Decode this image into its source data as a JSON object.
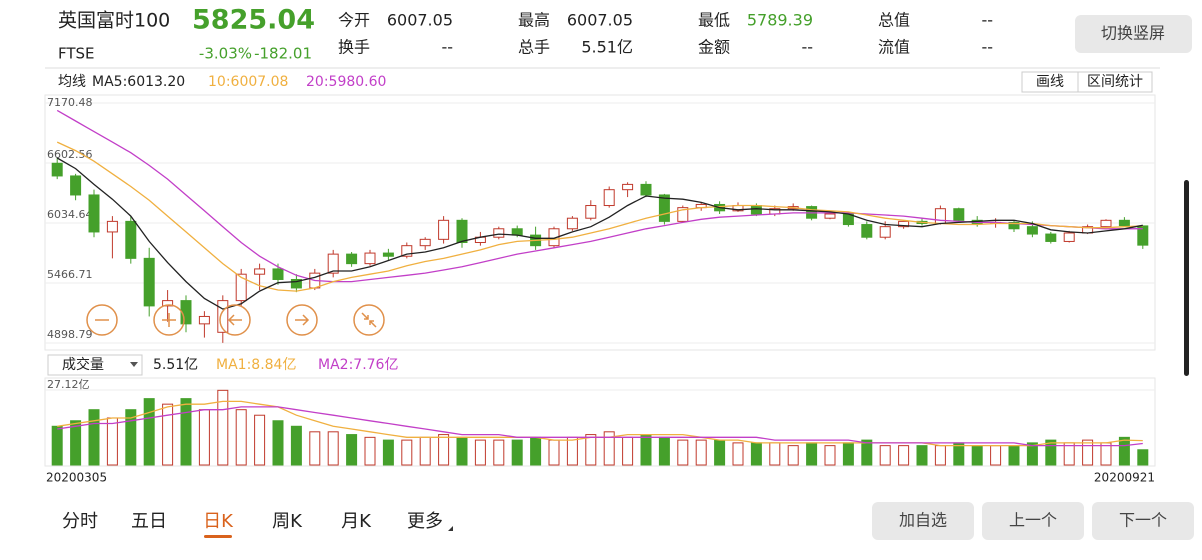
{
  "header": {
    "name": "英国富时100",
    "price": "5825.04",
    "code": "FTSE",
    "change_pct": "-3.03%",
    "change": "-182.01",
    "stats": [
      {
        "label": "今开",
        "value": "6007.05"
      },
      {
        "label": "最高",
        "value": "6007.05"
      },
      {
        "label": "最低",
        "value": "5789.39"
      },
      {
        "label": "总值",
        "value": "--"
      },
      {
        "label": "换手",
        "value": "--"
      },
      {
        "label": "总手",
        "value": "5.51亿"
      },
      {
        "label": "金额",
        "value": "--"
      },
      {
        "label": "流值",
        "value": "--"
      }
    ],
    "toggle": "切换竖屏"
  },
  "chart_data": {
    "type": "candlestick",
    "ma_legend": {
      "label": "均线",
      "ma5": "MA5:6013.20",
      "ma10": "10:6007.08",
      "ma20": "20:5980.60"
    },
    "tools": [
      "画线",
      "区间统计"
    ],
    "up_color": "#c0392b",
    "down_color": "#45a02b",
    "ma5_color": "#222222",
    "ma10_color": "#f0b040",
    "ma20_color": "#c23fc8",
    "ylim": [
      4898.79,
      7170.48
    ],
    "yticks": [
      7170.48,
      6602.56,
      6034.64,
      5466.71,
      4898.79
    ],
    "grid": true,
    "open": [
      6600,
      6480,
      6300,
      5950,
      6050,
      5700,
      5250,
      5300,
      5080,
      5000,
      5300,
      5550,
      5600,
      5500,
      5420,
      5560,
      5740,
      5650,
      5750,
      5720,
      5820,
      5880,
      6060,
      5850,
      5900,
      5980,
      5920,
      5820,
      5980,
      6080,
      6200,
      6350,
      6400,
      6300,
      6050,
      6180,
      6210,
      6150,
      6200,
      6120,
      6170,
      6190,
      6080,
      6120,
      6020,
      5900,
      6000,
      6050,
      6030,
      6170,
      6060,
      6030,
      6040,
      6000,
      5930,
      5860,
      5940,
      6000,
      6060,
      6007.05
    ],
    "high": [
      6650,
      6500,
      6350,
      6100,
      6100,
      5800,
      5400,
      5350,
      5200,
      5350,
      5600,
      5650,
      5650,
      5550,
      5600,
      5780,
      5760,
      5780,
      5790,
      5850,
      5900,
      6100,
      6080,
      5950,
      6000,
      6010,
      6000,
      6000,
      6100,
      6250,
      6380,
      6420,
      6430,
      6310,
      6200,
      6230,
      6240,
      6230,
      6220,
      6200,
      6220,
      6200,
      6150,
      6130,
      6050,
      6050,
      6060,
      6080,
      6200,
      6180,
      6100,
      6080,
      6060,
      6050,
      5950,
      5960,
      6020,
      6070,
      6090,
      6007.05
    ],
    "low": [
      6450,
      6250,
      5900,
      5700,
      5650,
      5150,
      5100,
      5000,
      4950,
      4900,
      5250,
      5400,
      5450,
      5380,
      5400,
      5520,
      5620,
      5630,
      5680,
      5700,
      5780,
      5840,
      5800,
      5820,
      5880,
      5900,
      5780,
      5800,
      5960,
      6060,
      6180,
      6280,
      6280,
      6020,
      6040,
      6150,
      6120,
      6140,
      6100,
      6100,
      6150,
      6060,
      6070,
      6000,
      5880,
      5880,
      5980,
      6010,
      6020,
      6040,
      6000,
      5990,
      5950,
      5900,
      5840,
      5850,
      5930,
      5990,
      6000,
      5789.39
    ],
    "close": [
      6480,
      6300,
      5950,
      6050,
      5700,
      5250,
      5300,
      5080,
      5150,
      5300,
      5550,
      5600,
      5500,
      5420,
      5560,
      5740,
      5650,
      5750,
      5720,
      5820,
      5880,
      6060,
      5850,
      5900,
      5980,
      5920,
      5820,
      5980,
      6080,
      6200,
      6350,
      6400,
      6300,
      6050,
      6180,
      6210,
      6150,
      6200,
      6120,
      6170,
      6190,
      6080,
      6120,
      6020,
      5900,
      6000,
      6050,
      6030,
      6170,
      6060,
      6030,
      6040,
      5980,
      5930,
      5860,
      5940,
      6000,
      6060,
      6010,
      5825.04
    ],
    "ma5": [
      6650,
      6550,
      6400,
      6260,
      6100,
      5860,
      5660,
      5480,
      5320,
      5220,
      5270,
      5390,
      5470,
      5480,
      5520,
      5580,
      5580,
      5620,
      5680,
      5740,
      5760,
      5800,
      5860,
      5900,
      5930,
      5920,
      5890,
      5890,
      5950,
      6000,
      6090,
      6200,
      6290,
      6270,
      6260,
      6230,
      6180,
      6160,
      6170,
      6160,
      6160,
      6150,
      6140,
      6120,
      6060,
      6020,
      6010,
      6000,
      6030,
      6040,
      6050,
      6060,
      6060,
      6030,
      5970,
      5950,
      5940,
      5960,
      5980,
      6013.2
    ],
    "ma10": [
      6800,
      6720,
      6620,
      6500,
      6380,
      6250,
      6100,
      5950,
      5800,
      5650,
      5520,
      5440,
      5400,
      5390,
      5420,
      5480,
      5520,
      5550,
      5580,
      5630,
      5670,
      5700,
      5740,
      5780,
      5830,
      5860,
      5870,
      5880,
      5900,
      5940,
      5980,
      6030,
      6080,
      6120,
      6160,
      6180,
      6190,
      6200,
      6200,
      6190,
      6180,
      6160,
      6150,
      6140,
      6110,
      6080,
      6060,
      6040,
      6030,
      6020,
      6020,
      6030,
      6030,
      6030,
      6010,
      6000,
      5990,
      5990,
      6000,
      6007.08
    ],
    "ma20": [
      7100,
      7000,
      6900,
      6800,
      6700,
      6580,
      6450,
      6300,
      6150,
      6000,
      5850,
      5720,
      5620,
      5540,
      5490,
      5480,
      5480,
      5500,
      5520,
      5540,
      5560,
      5590,
      5620,
      5660,
      5700,
      5740,
      5770,
      5800,
      5830,
      5860,
      5900,
      5940,
      5980,
      6010,
      6040,
      6070,
      6090,
      6100,
      6110,
      6120,
      6130,
      6130,
      6130,
      6130,
      6120,
      6110,
      6100,
      6080,
      6060,
      6050,
      6040,
      6040,
      6030,
      6020,
      6010,
      6000,
      5990,
      5980,
      5980,
      5980.6
    ],
    "volume": {
      "selector": "成交量",
      "current": "5.51亿",
      "ma1": "MA1:8.84亿",
      "ma2": "MA2:7.76亿",
      "ma1_color": "#f0b040",
      "ma2_color": "#c23fc8",
      "ylim": [
        0,
        27.12
      ],
      "yticks": [
        {
          "value": 27.12,
          "label": "27.12亿"
        }
      ],
      "values": [
        14,
        16,
        20,
        17,
        20,
        24,
        22,
        24,
        20,
        27,
        20,
        18,
        16,
        14,
        12,
        12,
        11,
        10,
        9,
        9,
        10,
        11,
        10,
        9,
        9,
        9,
        10,
        9,
        10,
        11,
        12,
        10,
        11,
        10,
        9,
        9,
        9,
        8,
        8,
        8,
        7,
        8,
        7,
        8,
        9,
        7,
        7,
        7,
        7,
        8,
        7,
        7,
        7,
        8,
        9,
        8,
        9,
        8,
        10,
        5.51
      ],
      "ma1_values": [
        14,
        15,
        16,
        17,
        17,
        19,
        21,
        22,
        22,
        23,
        23,
        22,
        21,
        18,
        16,
        14,
        13,
        12,
        11,
        10,
        10,
        10,
        10,
        10,
        10,
        10,
        10,
        9,
        9,
        10,
        10,
        11,
        11,
        11,
        11,
        10,
        9,
        9,
        8,
        8,
        8,
        8,
        8,
        8,
        8,
        8,
        8,
        8,
        7,
        7,
        7,
        7,
        7,
        7,
        8,
        8,
        8,
        8,
        9,
        8.84
      ],
      "ma2_values": [
        13,
        14,
        15,
        15,
        16,
        17,
        18,
        19,
        20,
        20,
        21,
        21,
        21,
        20,
        19,
        18,
        17,
        16,
        15,
        14,
        13,
        12,
        11,
        11,
        11,
        10,
        10,
        10,
        10,
        10,
        10,
        10,
        10,
        10,
        10,
        10,
        10,
        10,
        10,
        9,
        9,
        9,
        9,
        9,
        8,
        8,
        8,
        8,
        8,
        8,
        8,
        8,
        8,
        7,
        7,
        7,
        7,
        7,
        7,
        7.76
      ]
    },
    "x_labels": [
      "20200305",
      "20200921"
    ]
  },
  "tabs": [
    "分时",
    "五日",
    "日K",
    "周K",
    "月K",
    "更多"
  ],
  "active_tab": 2,
  "buttons": [
    "加自选",
    "上一个",
    "下一个"
  ]
}
